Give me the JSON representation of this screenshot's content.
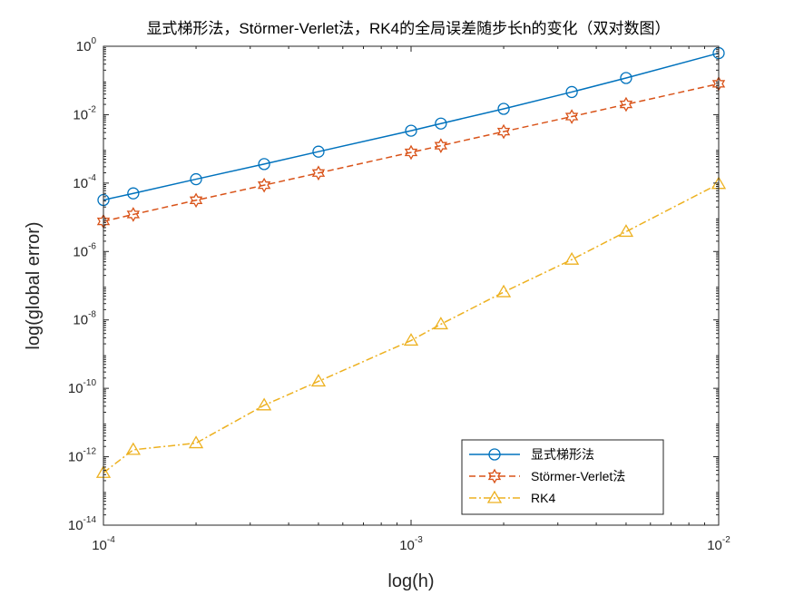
{
  "chart_data": {
    "type": "line",
    "title": "显式梯形法，Störmer-Verlet法，RK4的全局误差随步长h的变化（双对数图）",
    "xlabel": "log(h)",
    "ylabel": "log(global error)",
    "xscale": "log",
    "yscale": "log",
    "xlim": [
      0.0001,
      0.01
    ],
    "ylim": [
      1e-14,
      1
    ],
    "x_tick_base": "10",
    "x_ticks": [
      {
        "value": 0.0001,
        "exp": "-4"
      },
      {
        "value": 0.001,
        "exp": "-3"
      },
      {
        "value": 0.01,
        "exp": "-2"
      }
    ],
    "y_tick_base": "10",
    "y_ticks": [
      {
        "value": 1e-14,
        "exp": "-14"
      },
      {
        "value": 1e-12,
        "exp": "-12"
      },
      {
        "value": 1e-10,
        "exp": "-10"
      },
      {
        "value": 1e-08,
        "exp": "-8"
      },
      {
        "value": 1e-06,
        "exp": "-6"
      },
      {
        "value": 0.0001,
        "exp": "-4"
      },
      {
        "value": 0.01,
        "exp": "-2"
      },
      {
        "value": 1,
        "exp": "0"
      }
    ],
    "grid": false,
    "legend_position": "bottom-right",
    "series": [
      {
        "name": "显式梯形法",
        "color": "#0072BD",
        "line_style": "solid",
        "marker": "circle",
        "x": [
          0.0001,
          0.000125,
          0.0002,
          0.000333,
          0.0005,
          0.001,
          0.00125,
          0.002,
          0.00333,
          0.005,
          0.01
        ],
        "y": [
          3.2e-05,
          5e-05,
          0.00013,
          0.00036,
          0.00083,
          0.0034,
          0.0055,
          0.0148,
          0.046,
          0.118,
          0.63
        ]
      },
      {
        "name": "Störmer-Verlet法",
        "color": "#D95319",
        "line_style": "dashed",
        "marker": "hexagram",
        "x": [
          0.0001,
          0.000125,
          0.0002,
          0.000333,
          0.0005,
          0.001,
          0.00125,
          0.002,
          0.00333,
          0.005,
          0.01
        ],
        "y": [
          7.6e-06,
          1.21e-05,
          3.15e-05,
          8.7e-05,
          0.000197,
          0.00079,
          0.00124,
          0.0032,
          0.0088,
          0.02,
          0.08
        ]
      },
      {
        "name": "RK4",
        "color": "#EDB120",
        "line_style": "dashdot",
        "marker": "triangle",
        "x": [
          0.0001,
          0.000125,
          0.0002,
          0.000333,
          0.0005,
          0.001,
          0.00125,
          0.002,
          0.00333,
          0.005,
          0.01
        ],
        "y": [
          3.4e-13,
          1.6e-12,
          2.5e-12,
          3.2e-11,
          1.6e-10,
          2.5e-09,
          7.5e-09,
          6.5e-08,
          5.8e-07,
          3.8e-06,
          9.5e-05
        ]
      }
    ]
  }
}
